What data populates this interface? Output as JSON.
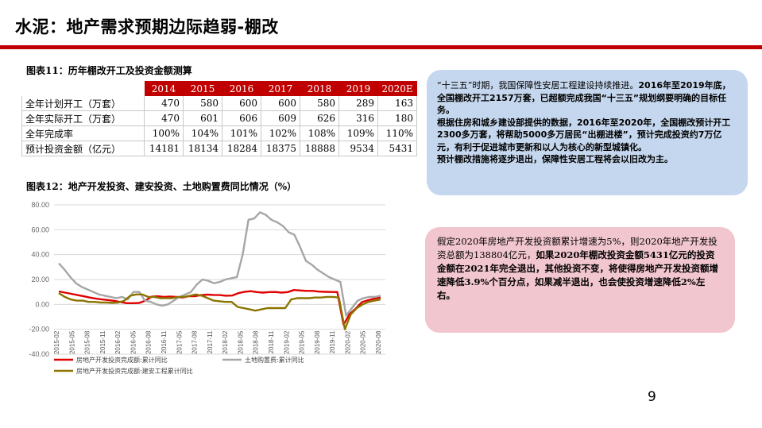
{
  "slide": {
    "title": "水泥：地产需求预期边际趋弱-棚改",
    "page_number": "9",
    "accent_color": "#c00000"
  },
  "table1": {
    "caption": "图表11：历年棚改开工及投资金额测算",
    "years": [
      "2014",
      "2015",
      "2016",
      "2017",
      "2018",
      "2019",
      "2020E"
    ],
    "rows": [
      {
        "label": "全年计划开工（万套）",
        "values": [
          "470",
          "580",
          "600",
          "600",
          "580",
          "289",
          "163"
        ]
      },
      {
        "label": "全年实际开工（万套）",
        "values": [
          "470",
          "601",
          "606",
          "609",
          "626",
          "316",
          "180"
        ]
      },
      {
        "label": "全年完成率",
        "values": [
          "100%",
          "104%",
          "101%",
          "102%",
          "108%",
          "109%",
          "110%"
        ]
      },
      {
        "label": "预计投资金额（亿元）",
        "values": [
          "14181",
          "18134",
          "18284",
          "18375",
          "18888",
          "9534",
          "5431"
        ]
      }
    ]
  },
  "box1": {
    "p1_normal": "“十三五”时期，我国保障性安居工程建设持续推进。",
    "p1_bold": "2016年至2019年底，全国棚改开工2157万套，已超额完成我国“十三五”规划纲要明确的目标任务。",
    "p2": "根据住房和城乡建设部提供的数据，2016年至2020年，全国棚改预计开工2300多万套，将帮助5000多万居民“出棚进楼”，预计完成投资约7万亿元，有利于促进城市更新和以人为核心的新型城镇化。",
    "p3": "预计棚改措施将逐步退出，保障性安居工程将会以旧改为主。"
  },
  "box2": {
    "normal": "假定2020年房地产开发投资额累计增速为5%，则2020年地产开发投资总额为138804亿元，",
    "bold": "如果2020年棚改投资金额5431亿元的投资金额在2021年完全退出，其他投资不变，将使得房地产开发投资额增速降低3.9%个百分点，如果减半退出，也会使投资增速降低2%左右。"
  },
  "chart_data": {
    "type": "line",
    "title": "图表12：地产开发投资、建安投资、土地购置费同比情况（%）",
    "ylim": [
      -40,
      80
    ],
    "yticks": [
      "80.00",
      "60.00",
      "40.00",
      "20.00",
      "0.00",
      "-20.00",
      "-40.00"
    ],
    "xticks": [
      "2015-02",
      "2015-05",
      "2015-08",
      "2015-11",
      "2016-02",
      "2016-05",
      "2016-08",
      "2016-11",
      "2017-05",
      "2017-08",
      "2017-11",
      "2018-02",
      "2018-05",
      "2018-08",
      "2018-11",
      "2019-02",
      "2019-05",
      "2019-08",
      "2019-11",
      "2020-02",
      "2020-05",
      "2020-08"
    ],
    "grid": true,
    "legend_position": "bottom",
    "series": [
      {
        "name": "房地产开发投资完成额:累计同比",
        "color": "#e00000",
        "values": [
          10.4,
          9.5,
          8.5,
          7.5,
          6.5,
          5.5,
          4.6,
          4.0,
          3.5,
          2.8,
          1.9,
          1.0,
          1.0,
          1.2,
          3.0,
          6.2,
          6.5,
          6.0,
          6.3,
          6.0,
          5.5,
          6.6,
          6.5,
          7.5,
          7.9,
          7.6,
          7.5,
          7.0,
          7.1,
          9.0,
          10.1,
          10.6,
          9.9,
          9.5,
          9.9,
          10.0,
          9.5,
          9.9,
          11.6,
          11.2,
          10.9,
          10.9,
          10.3,
          10.1,
          10.0,
          9.9,
          -16.3,
          -7.7,
          -3.3,
          1.9,
          3.4,
          4.6,
          5.6
        ]
      },
      {
        "name": "土地购置费:累计同比",
        "color": "#a6a6a6",
        "values": [
          33,
          28,
          22,
          17,
          14,
          12,
          10,
          8,
          7,
          6,
          5,
          6,
          4,
          10,
          10,
          3,
          2,
          0,
          -1,
          0,
          3,
          6,
          8,
          10,
          16,
          20,
          19,
          17,
          18,
          20,
          21,
          22,
          40,
          68,
          69,
          74,
          72,
          68,
          66,
          63,
          58,
          56,
          46,
          35,
          32,
          28,
          25,
          22,
          20,
          18,
          -9,
          -3,
          3,
          5,
          6,
          6,
          7
        ]
      },
      {
        "name": "房地产开发投资完成额:建安工程累计同比",
        "color": "#8b7400",
        "values": [
          9,
          6,
          4,
          3,
          3,
          2,
          2,
          1.5,
          1.5,
          1.2,
          1.5,
          3,
          7,
          8,
          8,
          6,
          6,
          5,
          5,
          5,
          6,
          6,
          7,
          8,
          7,
          5,
          3,
          2.5,
          2,
          2,
          -2,
          -3,
          -4,
          -5,
          -4,
          -3,
          -3,
          -3,
          -3,
          4,
          5,
          5,
          5,
          5.5,
          5.5,
          6,
          6,
          5.5,
          -20,
          -8,
          -3,
          0,
          2,
          3,
          4
        ]
      }
    ]
  }
}
